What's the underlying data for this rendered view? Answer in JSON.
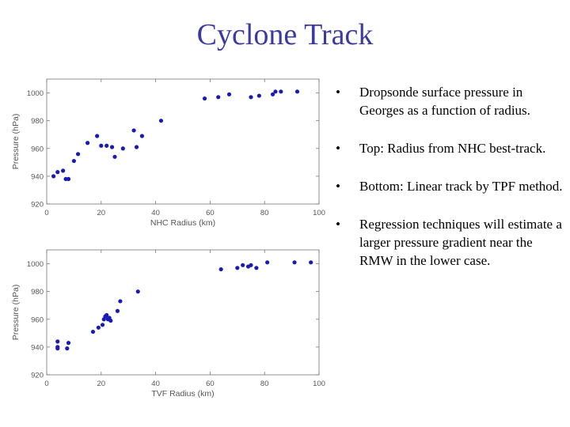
{
  "title": "Cyclone Track",
  "bullets": [
    "Dropsonde surface pressure in Georges as a function of radius.",
    "Top: Radius from NHC best-track.",
    "Bottom: Linear track by TPF method.",
    "Regression techniques will estimate a larger pressure gradient near the RMW in the lower case."
  ],
  "bullet_glyph": "•",
  "colors": {
    "title": "#3a3aa0",
    "points": "#1a1ab4",
    "text": "#000000"
  },
  "chart_data": [
    {
      "type": "scatter",
      "title": "",
      "xlabel": "NHC Radius (km)",
      "ylabel": "Pressure (hPa)",
      "xlim": [
        0,
        100
      ],
      "ylim": [
        920,
        1010
      ],
      "xticks": [
        0,
        20,
        40,
        60,
        80,
        100
      ],
      "yticks": [
        920,
        940,
        960,
        980,
        1000
      ],
      "grid": false,
      "points": [
        [
          2.5,
          940
        ],
        [
          4,
          943
        ],
        [
          6,
          944
        ],
        [
          7,
          938
        ],
        [
          8,
          938
        ],
        [
          10,
          951
        ],
        [
          11.5,
          956
        ],
        [
          15,
          964
        ],
        [
          18.5,
          969
        ],
        [
          20,
          962
        ],
        [
          22,
          962
        ],
        [
          24,
          961
        ],
        [
          25,
          954
        ],
        [
          28,
          960
        ],
        [
          32,
          973
        ],
        [
          35,
          969
        ],
        [
          33,
          961
        ],
        [
          42,
          980
        ],
        [
          58,
          996
        ],
        [
          63,
          997
        ],
        [
          67,
          999
        ],
        [
          75,
          997
        ],
        [
          78,
          998
        ],
        [
          83,
          999
        ],
        [
          84,
          1001
        ],
        [
          86,
          1001
        ],
        [
          92,
          1001
        ]
      ]
    },
    {
      "type": "scatter",
      "title": "",
      "xlabel": "TVF Radius (km)",
      "ylabel": "Pressure (hPa)",
      "xlim": [
        0,
        100
      ],
      "ylim": [
        920,
        1010
      ],
      "xticks": [
        0,
        20,
        40,
        60,
        80,
        100
      ],
      "yticks": [
        920,
        940,
        960,
        980,
        1000
      ],
      "grid": false,
      "points": [
        [
          4,
          944
        ],
        [
          4,
          940
        ],
        [
          4,
          939
        ],
        [
          7.5,
          939
        ],
        [
          8,
          943
        ],
        [
          17,
          951
        ],
        [
          19,
          954
        ],
        [
          20.5,
          956
        ],
        [
          21,
          960
        ],
        [
          21.5,
          962
        ],
        [
          22,
          963
        ],
        [
          22.5,
          960
        ],
        [
          23,
          961
        ],
        [
          23.5,
          959
        ],
        [
          26,
          966
        ],
        [
          27,
          973
        ],
        [
          33.5,
          980
        ],
        [
          64,
          996
        ],
        [
          70,
          997
        ],
        [
          72,
          999
        ],
        [
          74,
          998
        ],
        [
          75,
          999
        ],
        [
          77,
          997
        ],
        [
          81,
          1001
        ],
        [
          91,
          1001
        ],
        [
          97,
          1001
        ]
      ]
    }
  ]
}
